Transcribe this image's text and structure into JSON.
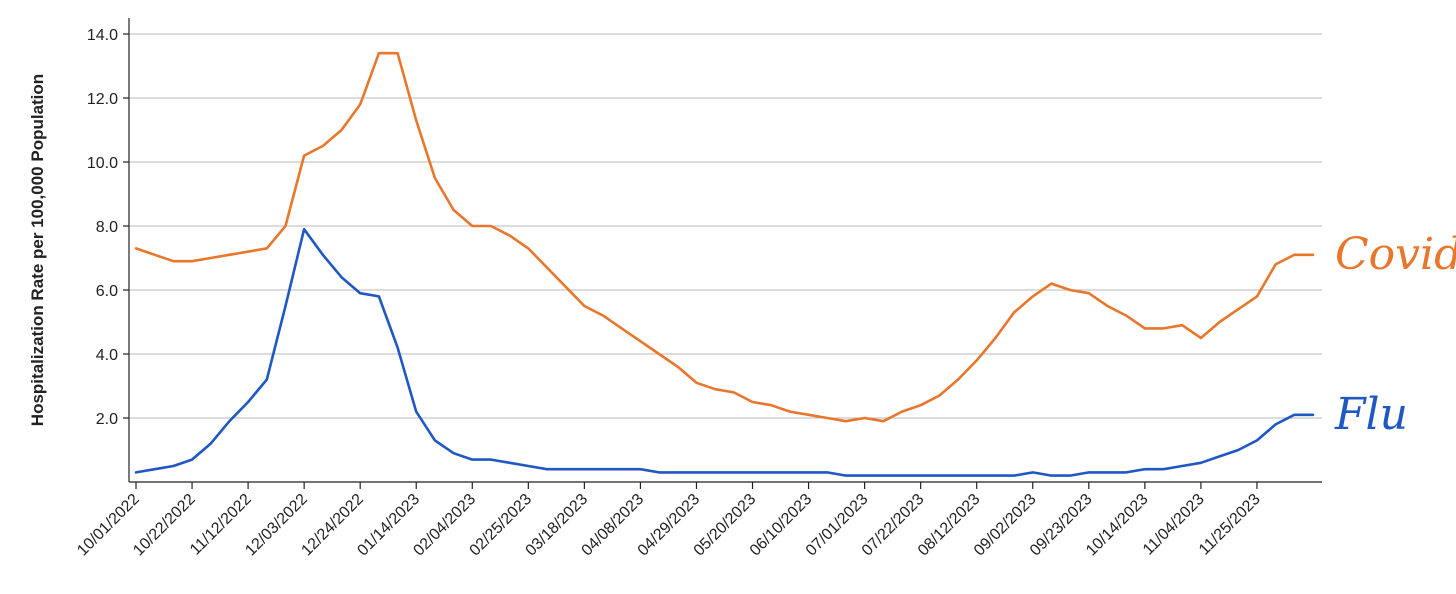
{
  "chart_data": {
    "type": "line",
    "title": "",
    "xlabel": "",
    "ylabel": "Hospitalization Rate per 100,000 Population",
    "ylim": [
      0,
      14.5
    ],
    "yticks": [
      2.0,
      4.0,
      6.0,
      8.0,
      10.0,
      12.0,
      14.0
    ],
    "ytick_labels": [
      "2.0",
      "4.0",
      "6.0",
      "8.0",
      "10.0",
      "12.0",
      "14.0"
    ],
    "xlim": [
      "10/01/2022",
      "12/16/2023"
    ],
    "xtick_labels": [
      "10/01/2022",
      "10/22/2022",
      "11/12/2022",
      "12/03/2022",
      "12/24/2022",
      "01/14/2023",
      "02/04/2023",
      "02/25/2023",
      "03/18/2023",
      "04/08/2023",
      "04/29/2023",
      "05/20/2023",
      "06/10/2023",
      "07/01/2023",
      "07/22/2023",
      "08/12/2023",
      "09/02/2023",
      "09/23/2023",
      "10/14/2023",
      "11/04/2023",
      "11/25/2023"
    ],
    "grid": true,
    "x": [
      "10/01/2022",
      "10/08/2022",
      "10/15/2022",
      "10/22/2022",
      "10/29/2022",
      "11/05/2022",
      "11/12/2022",
      "11/19/2022",
      "11/26/2022",
      "12/03/2022",
      "12/10/2022",
      "12/17/2022",
      "12/24/2022",
      "12/31/2022",
      "01/07/2023",
      "01/14/2023",
      "01/21/2023",
      "01/28/2023",
      "02/04/2023",
      "02/11/2023",
      "02/18/2023",
      "02/25/2023",
      "03/04/2023",
      "03/11/2023",
      "03/18/2023",
      "03/25/2023",
      "04/01/2023",
      "04/08/2023",
      "04/15/2023",
      "04/22/2023",
      "04/29/2023",
      "05/06/2023",
      "05/13/2023",
      "05/20/2023",
      "05/27/2023",
      "06/03/2023",
      "06/10/2023",
      "06/17/2023",
      "06/24/2023",
      "07/01/2023",
      "07/08/2023",
      "07/15/2023",
      "07/22/2023",
      "07/29/2023",
      "08/05/2023",
      "08/12/2023",
      "08/19/2023",
      "08/26/2023",
      "09/02/2023",
      "09/09/2023",
      "09/16/2023",
      "09/23/2023",
      "09/30/2023",
      "10/07/2023",
      "10/14/2023",
      "10/21/2023",
      "10/28/2023",
      "11/04/2023",
      "11/11/2023",
      "11/18/2023",
      "11/25/2023",
      "12/02/2023",
      "12/09/2023",
      "12/16/2023"
    ],
    "series": [
      {
        "name": "Covid",
        "color": "#e8762c",
        "values": [
          7.3,
          7.1,
          6.9,
          6.9,
          7.0,
          7.1,
          7.2,
          7.3,
          8.0,
          10.2,
          10.5,
          11.0,
          11.8,
          13.4,
          13.4,
          11.3,
          9.5,
          8.5,
          8.0,
          8.0,
          7.7,
          7.3,
          6.7,
          6.1,
          5.5,
          5.2,
          4.8,
          4.4,
          4.0,
          3.6,
          3.1,
          2.9,
          2.8,
          2.5,
          2.4,
          2.2,
          2.1,
          2.0,
          1.9,
          2.0,
          1.9,
          2.2,
          2.4,
          2.7,
          3.2,
          3.8,
          4.5,
          5.3,
          5.8,
          6.2,
          6.0,
          5.9,
          5.5,
          5.2,
          4.8,
          4.8,
          4.9,
          4.5,
          5.0,
          5.4,
          5.8,
          6.8,
          7.1,
          7.1
        ]
      },
      {
        "name": "Flu",
        "color": "#1f57c3",
        "values": [
          0.3,
          0.4,
          0.5,
          0.7,
          1.2,
          1.9,
          2.5,
          3.2,
          5.5,
          7.9,
          7.1,
          6.4,
          5.9,
          5.8,
          4.2,
          2.2,
          1.3,
          0.9,
          0.7,
          0.7,
          0.6,
          0.5,
          0.4,
          0.4,
          0.4,
          0.4,
          0.4,
          0.4,
          0.3,
          0.3,
          0.3,
          0.3,
          0.3,
          0.3,
          0.3,
          0.3,
          0.3,
          0.3,
          0.2,
          0.2,
          0.2,
          0.2,
          0.2,
          0.2,
          0.2,
          0.2,
          0.2,
          0.2,
          0.3,
          0.2,
          0.2,
          0.3,
          0.3,
          0.3,
          0.4,
          0.4,
          0.5,
          0.6,
          0.8,
          1.0,
          1.3,
          1.8,
          2.1,
          2.1
        ]
      }
    ]
  }
}
